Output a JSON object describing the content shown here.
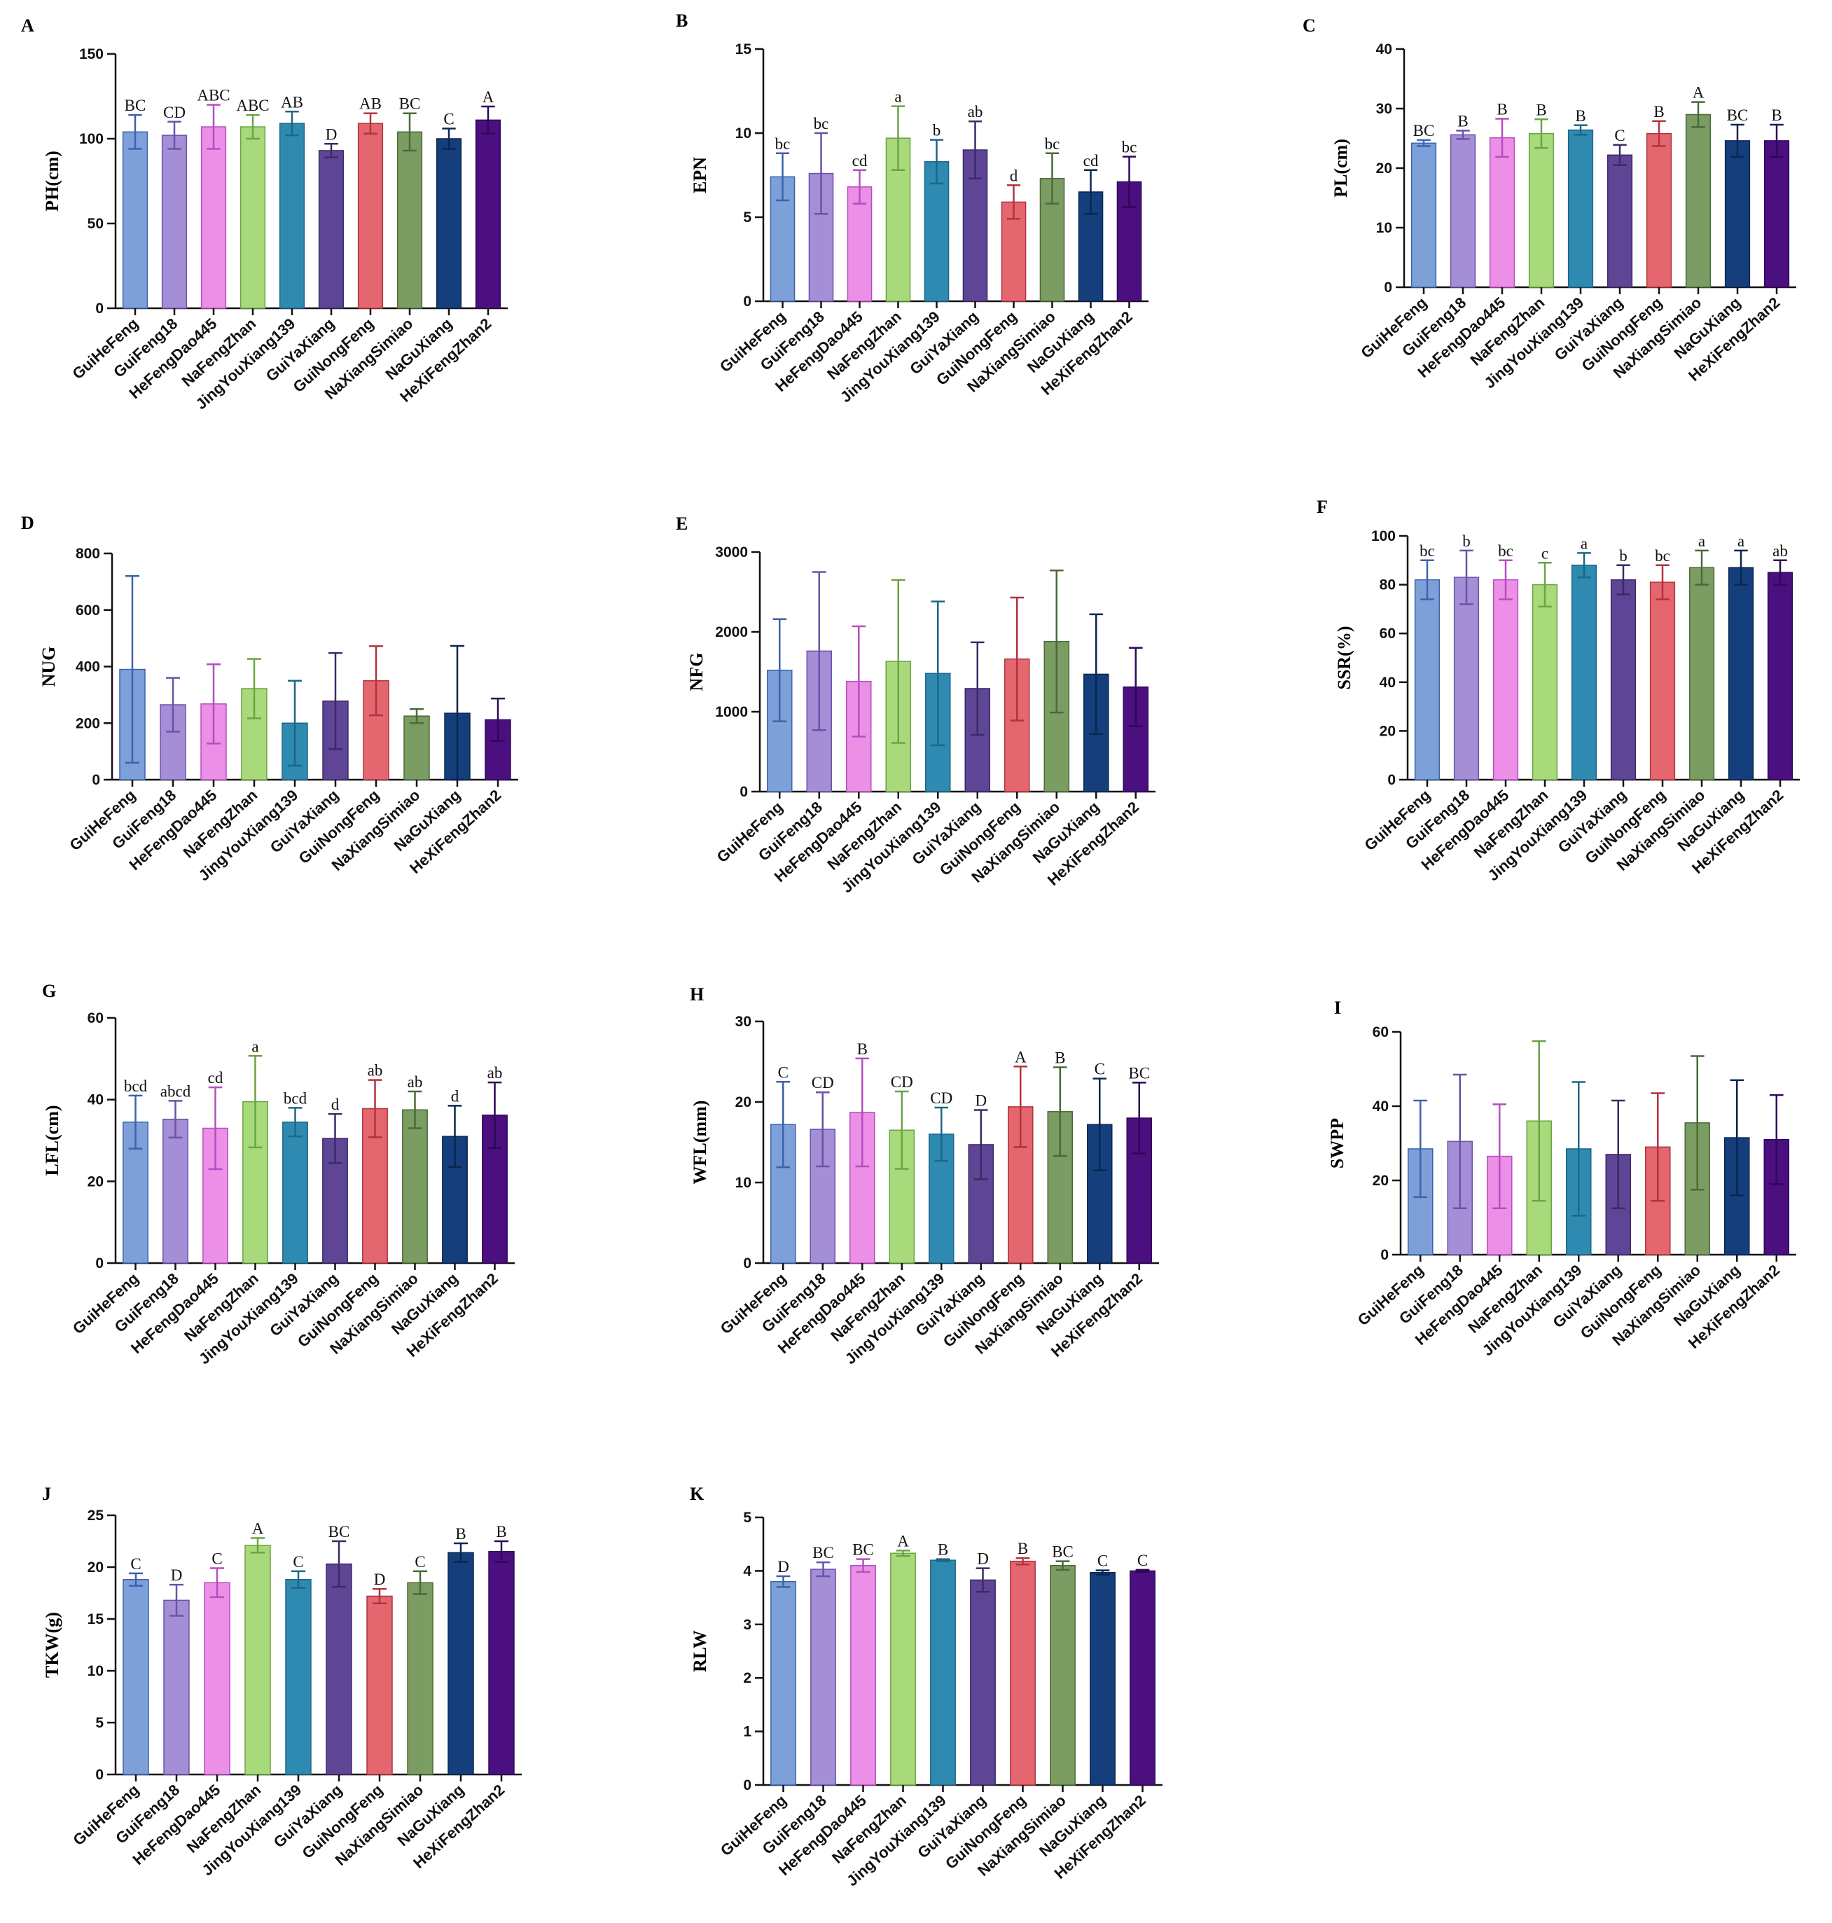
{
  "colors": {
    "bars": [
      "#7ea0d9",
      "#a48ed6",
      "#ec8fe6",
      "#a8d97a",
      "#2e8ab0",
      "#5e4596",
      "#e4666e",
      "#7b9c62",
      "#143f7c",
      "#4b0f80"
    ],
    "errors": [
      "#3b62ad",
      "#6b52a8",
      "#b64dc0",
      "#6aa444",
      "#1f6685",
      "#3c2a66",
      "#b3323c",
      "#4a6a37",
      "#0b2650",
      "#2e0857"
    ]
  },
  "categories": [
    "GuiHeFeng",
    "GuiFeng18",
    "HeFengDao445",
    "NaFengZhan",
    "JingYouXiang139",
    "GuiYaXiang",
    "GuiNongFeng",
    "NaXiangSimiao",
    "NaGuXiang",
    "HeXiFengZhan2"
  ],
  "chart_data": [
    {
      "type": "bar",
      "panel": "A",
      "ylabel": "PH(cm)",
      "ylim": [
        0,
        150
      ],
      "yticks": [
        0,
        50,
        100,
        150
      ],
      "values": [
        104,
        102,
        107,
        107,
        109,
        93,
        109,
        104,
        100,
        111
      ],
      "errors": [
        10,
        8,
        13,
        7,
        7,
        4,
        6,
        11,
        6,
        8
      ],
      "letters": [
        "BC",
        "CD",
        "ABC",
        "ABC",
        "AB",
        "D",
        "AB",
        "BC",
        "C",
        "A"
      ]
    },
    {
      "type": "bar",
      "panel": "B",
      "ylabel": "EPN",
      "ylim": [
        0,
        15
      ],
      "yticks": [
        0,
        5,
        10,
        15
      ],
      "values": [
        7.4,
        7.6,
        6.8,
        9.7,
        8.3,
        9.0,
        5.9,
        7.3,
        6.5,
        7.1
      ],
      "errors": [
        1.4,
        2.4,
        1.0,
        1.9,
        1.3,
        1.7,
        1.0,
        1.5,
        1.3,
        1.5
      ],
      "letters": [
        "bc",
        "bc",
        "cd",
        "a",
        "b",
        "ab",
        "d",
        "bc",
        "cd",
        "bc"
      ]
    },
    {
      "type": "bar",
      "panel": "C",
      "ylabel": "PL(cm)",
      "ylim": [
        0,
        40
      ],
      "yticks": [
        0,
        10,
        20,
        30,
        40
      ],
      "values": [
        24.2,
        25.6,
        25.1,
        25.8,
        26.4,
        22.2,
        25.8,
        29.0,
        24.6,
        24.6
      ],
      "errors": [
        0.5,
        0.7,
        3.2,
        2.4,
        0.8,
        1.7,
        2.1,
        2.1,
        2.7,
        2.7
      ],
      "letters": [
        "BC",
        "B",
        "B",
        "B",
        "B",
        "C",
        "B",
        "A",
        "BC",
        "B"
      ]
    },
    {
      "type": "bar",
      "panel": "D",
      "ylabel": "NUG",
      "ylim": [
        0,
        800
      ],
      "yticks": [
        0,
        200,
        400,
        600,
        800
      ],
      "values": [
        390,
        265,
        268,
        322,
        200,
        278,
        350,
        225,
        235,
        212
      ],
      "errors": [
        330,
        95,
        140,
        105,
        150,
        170,
        122,
        25,
        238,
        75
      ],
      "letters": []
    },
    {
      "type": "bar",
      "panel": "E",
      "ylabel": "NFG",
      "ylim": [
        0,
        3000
      ],
      "yticks": [
        0,
        1000,
        2000,
        3000
      ],
      "values": [
        1520,
        1760,
        1380,
        1630,
        1480,
        1290,
        1660,
        1880,
        1470,
        1310
      ],
      "errors": [
        640,
        990,
        690,
        1020,
        900,
        580,
        770,
        890,
        750,
        490
      ],
      "letters": []
    },
    {
      "type": "bar",
      "panel": "F",
      "ylabel": "SSR(%)",
      "ylim": [
        0,
        100
      ],
      "yticks": [
        0,
        20,
        40,
        60,
        80,
        100
      ],
      "values": [
        82,
        83,
        82,
        80,
        88,
        82,
        81,
        87,
        87,
        85
      ],
      "errors": [
        8,
        11,
        8,
        9,
        5,
        6,
        7,
        7,
        7,
        5
      ],
      "letters": [
        "bc",
        "b",
        "bc",
        "c",
        "a",
        "b",
        "bc",
        "a",
        "a",
        "ab"
      ]
    },
    {
      "type": "bar",
      "panel": "G",
      "ylabel": "LFL(cm)",
      "ylim": [
        0,
        60
      ],
      "yticks": [
        0,
        20,
        40,
        60
      ],
      "values": [
        34.5,
        35.2,
        33.0,
        39.5,
        34.5,
        30.5,
        37.8,
        37.5,
        31.0,
        36.2
      ],
      "errors": [
        6.5,
        4.5,
        10.0,
        11.2,
        3.5,
        6.0,
        7.0,
        4.5,
        7.5,
        8.0
      ],
      "letters": [
        "bcd",
        "abcd",
        "cd",
        "a",
        "bcd",
        "d",
        "ab",
        "ab",
        "d",
        "ab"
      ]
    },
    {
      "type": "bar",
      "panel": "H",
      "ylabel": "WFL(mm)",
      "ylim": [
        0,
        30
      ],
      "yticks": [
        0,
        10,
        20,
        30
      ],
      "values": [
        17.2,
        16.6,
        18.7,
        16.5,
        16.0,
        14.7,
        19.4,
        18.8,
        17.2,
        18.0
      ],
      "errors": [
        5.3,
        4.6,
        6.7,
        4.8,
        3.3,
        4.3,
        5.0,
        5.5,
        5.7,
        4.4
      ],
      "letters": [
        "C",
        "CD",
        "B",
        "CD",
        "CD",
        "D",
        "A",
        "B",
        "C",
        "BC"
      ]
    },
    {
      "type": "bar",
      "panel": "I",
      "ylabel": "SWPP",
      "ylim": [
        0,
        60
      ],
      "yticks": [
        0,
        20,
        40,
        60
      ],
      "values": [
        28.5,
        30.5,
        26.5,
        36.0,
        28.5,
        27.0,
        29.0,
        35.5,
        31.5,
        31.0
      ],
      "errors": [
        13.0,
        18.0,
        14.0,
        21.5,
        18.0,
        14.5,
        14.5,
        18.0,
        15.5,
        12.0
      ],
      "letters": []
    },
    {
      "type": "bar",
      "panel": "J",
      "ylabel": "TKW(g)",
      "ylim": [
        0,
        25
      ],
      "yticks": [
        0,
        5,
        10,
        15,
        20,
        25
      ],
      "values": [
        18.8,
        16.8,
        18.5,
        22.1,
        18.8,
        20.3,
        17.2,
        18.5,
        21.4,
        21.5
      ],
      "errors": [
        0.6,
        1.5,
        1.4,
        0.7,
        0.8,
        2.2,
        0.7,
        1.1,
        0.9,
        1.0
      ],
      "letters": [
        "C",
        "D",
        "C",
        "A",
        "C",
        "BC",
        "D",
        "C",
        "B",
        "B"
      ]
    },
    {
      "type": "bar",
      "panel": "K",
      "ylabel": "RLW",
      "ylim": [
        0,
        5
      ],
      "yticks": [
        0,
        1,
        2,
        3,
        4,
        5
      ],
      "values": [
        3.8,
        4.03,
        4.1,
        4.33,
        4.2,
        3.83,
        4.18,
        4.1,
        3.97,
        4.0
      ],
      "errors": [
        0.1,
        0.13,
        0.12,
        0.05,
        0.02,
        0.22,
        0.06,
        0.08,
        0.04,
        0.02
      ],
      "letters": [
        "D",
        "BC",
        "BC",
        "A",
        "B",
        "D",
        "B",
        "BC",
        "C",
        "C"
      ]
    }
  ]
}
